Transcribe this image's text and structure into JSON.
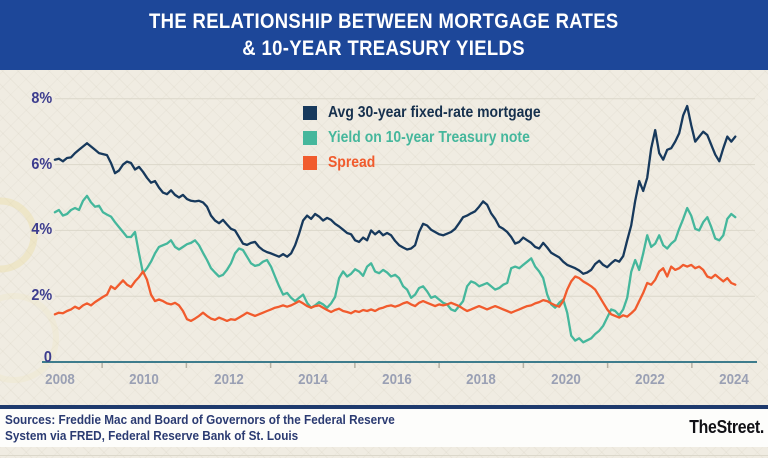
{
  "banner": {
    "title_line1": "THE RELATIONSHIP BETWEEN MORTGAGE RATES",
    "title_line2": "& 10-YEAR TREASURY YIELDS",
    "bg_color": "#1d4799"
  },
  "footer": {
    "sources_line1": "Sources: Freddie Mac and Board of Governors of the Federal Reserve",
    "sources_line2": "System via FRED, Federal Reserve Bank of St. Louis",
    "brand": "TheStreet."
  },
  "colors": {
    "banner_bg": "#1d4799",
    "mortgage_line": "#17395c",
    "treasury_line": "#45b79c",
    "spread_line": "#f15b2d",
    "y_label": "#3c3c8e",
    "x_label": "#9aa0b4",
    "axis": "#3e7c8c",
    "gridline": "#dbd7ca",
    "footer_divider": "#1e3a6d"
  },
  "chart_data": {
    "type": "line",
    "title": "THE RELATIONSHIP BETWEEN MORTGAGE RATES & 10-YEAR TREASURY YIELDS",
    "xlabel": "",
    "ylabel": "percent",
    "grid": "horizontal",
    "legend_position": "top-center",
    "ylim": [
      0,
      8.8
    ],
    "xlim": [
      2007.88,
      2024.1
    ],
    "y_ticks": [
      {
        "value": 8,
        "label": "8%"
      },
      {
        "value": 6,
        "label": "6%"
      },
      {
        "value": 4,
        "label": "4%"
      },
      {
        "value": 2,
        "label": "2%"
      },
      {
        "value": 0,
        "label": "0"
      }
    ],
    "x_ticks": [
      2008,
      2010,
      2012,
      2014,
      2016,
      2018,
      2020,
      2022,
      2024
    ],
    "x_minor_ticks": [
      2009,
      2011,
      2013,
      2015,
      2017,
      2019,
      2021,
      2023
    ],
    "x0": 2007.88,
    "dx": 0.095,
    "series": [
      {
        "name": "Avg 30-year fixed-rate mortgage",
        "color": "#17395c",
        "values": [
          6.15,
          6.18,
          6.1,
          6.2,
          6.22,
          6.35,
          6.45,
          6.55,
          6.65,
          6.55,
          6.45,
          6.35,
          6.32,
          6.29,
          6.05,
          5.74,
          5.82,
          6.0,
          6.09,
          6.05,
          5.85,
          5.93,
          5.78,
          5.6,
          5.45,
          5.5,
          5.3,
          5.15,
          5.1,
          5.22,
          5.08,
          5.0,
          5.08,
          4.95,
          4.9,
          4.88,
          4.9,
          4.85,
          4.72,
          4.45,
          4.3,
          4.22,
          4.32,
          4.18,
          4.05,
          4.0,
          3.8,
          3.6,
          3.56,
          3.62,
          3.65,
          3.5,
          3.4,
          3.34,
          3.3,
          3.25,
          3.2,
          3.28,
          3.2,
          3.3,
          3.55,
          3.9,
          4.3,
          4.45,
          4.35,
          4.5,
          4.42,
          4.3,
          4.38,
          4.32,
          4.2,
          4.12,
          4.02,
          3.92,
          3.88,
          3.7,
          3.65,
          3.78,
          3.7,
          4.0,
          3.88,
          3.98,
          3.85,
          3.92,
          3.85,
          3.68,
          3.55,
          3.48,
          3.42,
          3.45,
          3.55,
          3.95,
          4.2,
          4.15,
          4.02,
          3.95,
          3.88,
          3.85,
          3.9,
          3.95,
          4.05,
          4.22,
          4.4,
          4.45,
          4.52,
          4.58,
          4.72,
          4.88,
          4.78,
          4.52,
          4.35,
          4.12,
          4.05,
          3.95,
          3.8,
          3.6,
          3.65,
          3.78,
          3.7,
          3.62,
          3.5,
          3.45,
          3.62,
          3.48,
          3.32,
          3.25,
          3.18,
          3.05,
          2.95,
          2.9,
          2.85,
          2.78,
          2.68,
          2.72,
          2.8,
          2.98,
          3.08,
          2.95,
          2.88,
          3.0,
          3.1,
          3.05,
          3.22,
          3.7,
          4.15,
          4.9,
          5.5,
          5.2,
          5.6,
          6.5,
          7.05,
          6.35,
          6.15,
          6.45,
          6.5,
          6.7,
          6.95,
          7.5,
          7.78,
          7.2,
          6.7,
          6.85,
          7.0,
          6.9,
          6.6,
          6.3,
          6.1,
          6.5,
          6.85,
          6.7,
          6.85
        ]
      },
      {
        "name": "Yield on 10-year Treasury note",
        "color": "#45b79c",
        "values": [
          4.55,
          4.62,
          4.45,
          4.5,
          4.62,
          4.68,
          4.62,
          4.9,
          5.05,
          4.85,
          4.72,
          4.75,
          4.55,
          4.48,
          4.42,
          4.25,
          4.1,
          3.95,
          3.8,
          3.8,
          3.95,
          3.3,
          2.7,
          2.85,
          3.05,
          3.3,
          3.5,
          3.55,
          3.6,
          3.7,
          3.5,
          3.42,
          3.5,
          3.58,
          3.62,
          3.7,
          3.55,
          3.32,
          3.1,
          2.85,
          2.72,
          2.6,
          2.65,
          2.8,
          3.0,
          3.3,
          3.45,
          3.4,
          3.2,
          3.0,
          2.92,
          2.95,
          3.05,
          3.1,
          2.9,
          2.6,
          2.3,
          2.05,
          2.1,
          1.95,
          1.85,
          1.95,
          2.05,
          1.8,
          1.65,
          1.72,
          1.82,
          1.75,
          1.65,
          1.78,
          1.98,
          2.55,
          2.75,
          2.6,
          2.68,
          2.82,
          2.75,
          2.62,
          2.9,
          3.0,
          2.75,
          2.7,
          2.8,
          2.72,
          2.6,
          2.65,
          2.55,
          2.3,
          2.2,
          1.95,
          2.05,
          2.25,
          2.3,
          2.15,
          1.95,
          2.0,
          1.9,
          1.8,
          1.75,
          1.6,
          1.55,
          1.7,
          1.85,
          2.3,
          2.45,
          2.4,
          2.3,
          2.35,
          2.4,
          2.3,
          2.2,
          2.25,
          2.35,
          2.4,
          2.85,
          2.9,
          2.85,
          2.95,
          3.05,
          3.15,
          2.9,
          2.75,
          2.55,
          2.05,
          1.75,
          1.65,
          1.8,
          1.9,
          1.5,
          0.8,
          0.65,
          0.72,
          0.6,
          0.66,
          0.72,
          0.85,
          0.95,
          1.1,
          1.35,
          1.6,
          1.55,
          1.42,
          1.6,
          1.95,
          2.74,
          3.1,
          2.8,
          3.3,
          3.85,
          3.5,
          3.6,
          3.85,
          3.55,
          3.45,
          3.6,
          3.7,
          4.05,
          4.35,
          4.68,
          4.45,
          4.05,
          4.0,
          4.25,
          4.4,
          4.1,
          3.75,
          3.7,
          3.85,
          4.35,
          4.5,
          4.4
        ]
      },
      {
        "name": "Spread",
        "color": "#f15b2d",
        "values": [
          1.45,
          1.5,
          1.48,
          1.55,
          1.6,
          1.68,
          1.62,
          1.72,
          1.78,
          1.72,
          1.82,
          1.9,
          1.98,
          2.05,
          2.3,
          2.22,
          2.35,
          2.48,
          2.35,
          2.28,
          2.45,
          2.58,
          2.75,
          2.5,
          2.05,
          1.85,
          1.9,
          1.85,
          1.78,
          1.75,
          1.8,
          1.72,
          1.55,
          1.3,
          1.25,
          1.32,
          1.4,
          1.5,
          1.4,
          1.32,
          1.28,
          1.35,
          1.3,
          1.25,
          1.3,
          1.28,
          1.35,
          1.42,
          1.5,
          1.45,
          1.4,
          1.45,
          1.5,
          1.55,
          1.6,
          1.65,
          1.68,
          1.72,
          1.68,
          1.72,
          1.78,
          1.85,
          1.78,
          1.7,
          1.65,
          1.7,
          1.72,
          1.65,
          1.58,
          1.52,
          1.58,
          1.62,
          1.55,
          1.52,
          1.48,
          1.55,
          1.52,
          1.58,
          1.55,
          1.6,
          1.55,
          1.62,
          1.65,
          1.7,
          1.72,
          1.68,
          1.72,
          1.78,
          1.82,
          1.75,
          1.7,
          1.8,
          1.85,
          1.8,
          1.75,
          1.7,
          1.75,
          1.72,
          1.75,
          1.8,
          1.75,
          1.7,
          1.62,
          1.55,
          1.6,
          1.65,
          1.7,
          1.65,
          1.6,
          1.65,
          1.7,
          1.65,
          1.6,
          1.55,
          1.5,
          1.55,
          1.6,
          1.65,
          1.7,
          1.72,
          1.78,
          1.82,
          1.88,
          1.85,
          1.78,
          1.72,
          1.68,
          1.85,
          2.2,
          2.45,
          2.6,
          2.55,
          2.45,
          2.38,
          2.3,
          2.2,
          2.0,
          1.8,
          1.6,
          1.45,
          1.4,
          1.35,
          1.42,
          1.38,
          1.48,
          1.6,
          1.85,
          2.1,
          2.4,
          2.35,
          2.5,
          2.75,
          2.85,
          2.6,
          2.9,
          2.8,
          2.85,
          2.95,
          2.9,
          2.95,
          2.85,
          2.9,
          2.8,
          2.6,
          2.55,
          2.65,
          2.55,
          2.45,
          2.55,
          2.4,
          2.35
        ]
      }
    ]
  }
}
